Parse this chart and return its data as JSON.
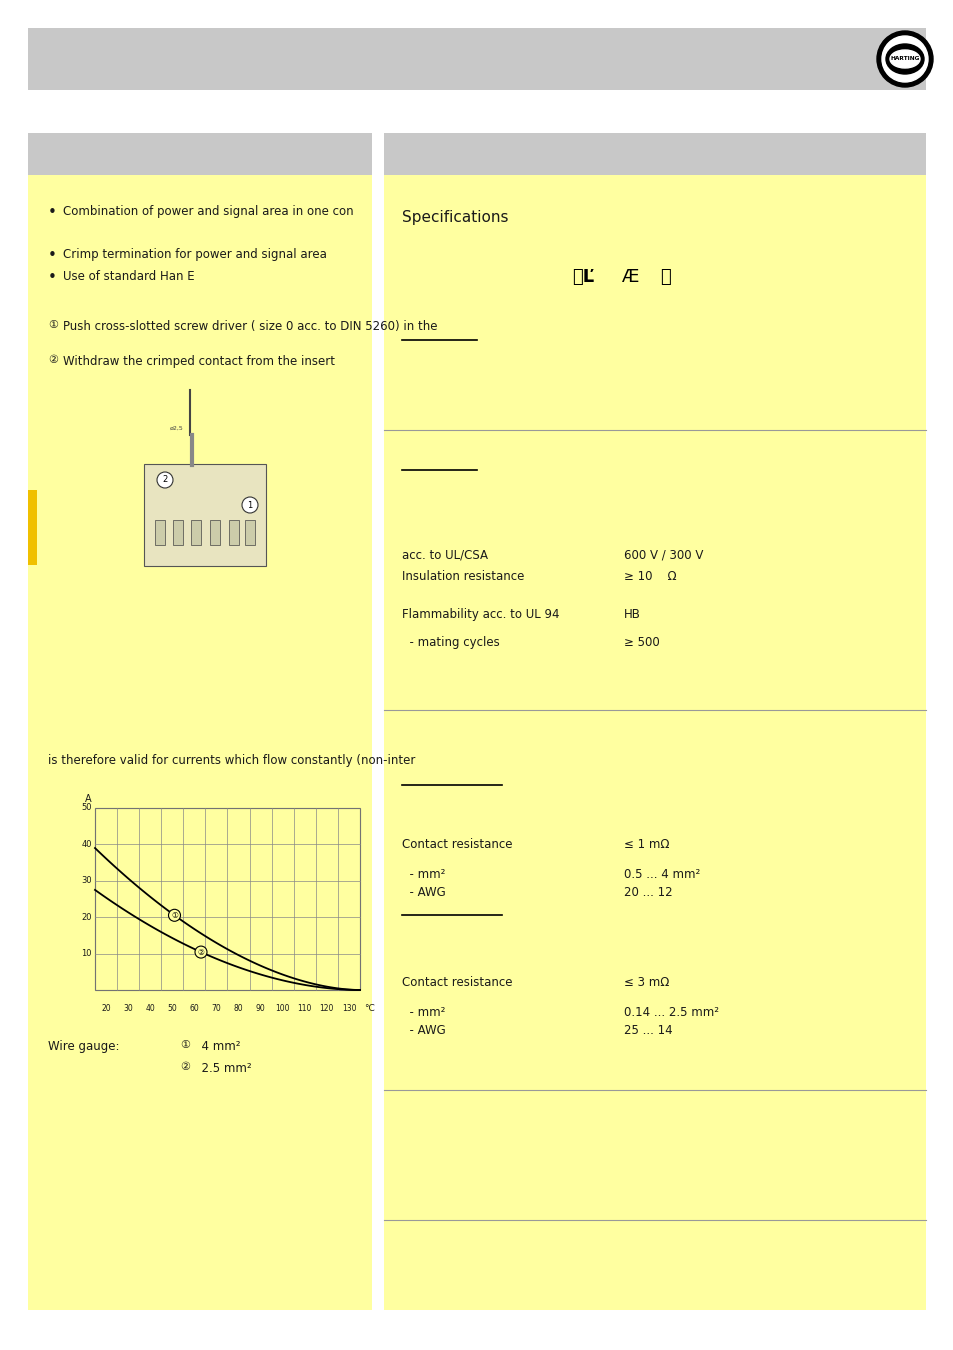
{
  "bg_color": "#ffffff",
  "header_color": "#c8c8c8",
  "yellow_color": "#ffffa0",
  "text_color": "#1a1a1a",
  "left_panel": {
    "bullets": [
      "Combination of power and signal area in one con",
      "Crimp termination for power and signal area",
      "Use of standard Han E"
    ],
    "step1": "Push cross-slotted screw driver ( size 0 acc. to DIN 5260) in the",
    "step2": "Withdraw the crimped contact from the insert",
    "step3_text": "is therefore valid for currents which flow constantly (non-inter",
    "wire_gauge_label": "Wire gauge:",
    "wire_gauge_1": "  4 mm²",
    "wire_gauge_2": "  2.5 mm²"
  },
  "right_panel": {
    "specs_title": "Specifications",
    "section1": {
      "line1_label": "acc. to UL/CSA",
      "line1_value": "600 V / 300 V",
      "line2_label": "Insulation resistance",
      "line2_value": "≥ 10    Ω",
      "line3_label": "Flammability acc. to UL 94",
      "line3_value": "HB",
      "line4_label": "  - mating cycles",
      "line4_value": "≥ 500"
    },
    "section2": {
      "contact_resistance1": "Contact resistance",
      "contact_resistance1_val": "≤ 1 mΩ",
      "mm2_1": "  - mm²",
      "mm2_1_val": "0.5 ... 4 mm²",
      "awg_1": "  - AWG",
      "awg_1_val": "20 ... 12"
    },
    "section3": {
      "contact_resistance2": "Contact resistance",
      "contact_resistance2_val": "≤ 3 mΩ",
      "mm2_2": "  - mm²",
      "mm2_2_val": "0.14 ... 2.5 mm²",
      "awg_2": "  - AWG",
      "awg_2_val": "25 ... 14"
    }
  }
}
